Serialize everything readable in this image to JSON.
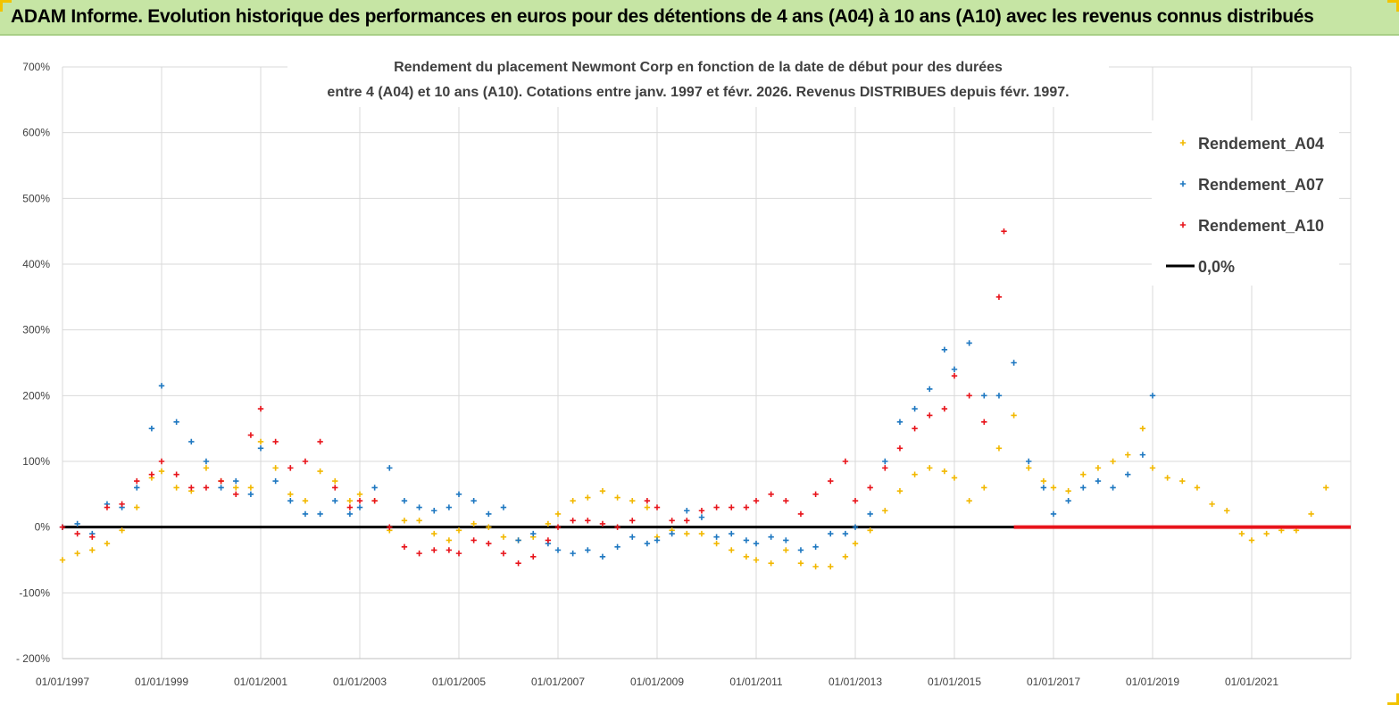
{
  "banner": {
    "title": "ADAM Informe. Evolution historique des performances en euros pour des détentions de 4 ans (A04) à 10 ans (A10) avec les revenus connus distribués"
  },
  "chart_data": {
    "type": "scatter",
    "title_line1": "Rendement du placement Newmont Corp en fonction de la date de début pour des durées",
    "title_line2": "entre 4 (A04) et 10 ans (A10).  Cotations entre janv. 1997 et févr. 2026. Revenus DISTRIBUES depuis févr. 1997.",
    "x_range": [
      1997.0,
      2023.0
    ],
    "x_ticks": [
      "01/01/1997",
      "01/01/1999",
      "01/01/2001",
      "01/01/2003",
      "01/01/2005",
      "01/01/2007",
      "01/01/2009",
      "01/01/2011",
      "01/01/2013",
      "01/01/2015",
      "01/01/2017",
      "01/01/2019",
      "01/01/2021"
    ],
    "x_tick_years": [
      1997,
      1999,
      2001,
      2003,
      2005,
      2007,
      2009,
      2011,
      2013,
      2015,
      2017,
      2019,
      2021
    ],
    "ylim": [
      -200,
      700
    ],
    "y_ticks": [
      "- 200%",
      "-100%",
      "0%",
      "100%",
      "200%",
      "300%",
      "400%",
      "500%",
      "600%",
      "700%"
    ],
    "y_tick_values": [
      -200,
      -100,
      0,
      100,
      200,
      300,
      400,
      500,
      600,
      700
    ],
    "grid": true,
    "legend_position": "right",
    "series": [
      {
        "name": "Rendement_A04",
        "color": "#f2b800",
        "marker": "plus",
        "x": [
          1997.0,
          1997.3,
          1997.6,
          1997.9,
          1998.2,
          1998.5,
          1998.8,
          1999.0,
          1999.3,
          1999.6,
          1999.9,
          2000.2,
          2000.5,
          2000.8,
          2001.0,
          2001.3,
          2001.6,
          2001.9,
          2002.2,
          2002.5,
          2002.8,
          2003.0,
          2003.3,
          2003.6,
          2003.9,
          2004.2,
          2004.5,
          2004.8,
          2005.0,
          2005.3,
          2005.6,
          2005.9,
          2006.2,
          2006.5,
          2006.8,
          2007.0,
          2007.3,
          2007.6,
          2007.9,
          2008.2,
          2008.5,
          2008.8,
          2009.0,
          2009.3,
          2009.6,
          2009.9,
          2010.2,
          2010.5,
          2010.8,
          2011.0,
          2011.3,
          2011.6,
          2011.9,
          2012.2,
          2012.5,
          2012.8,
          2013.0,
          2013.3,
          2013.6,
          2013.9,
          2014.2,
          2014.5,
          2014.8,
          2015.0,
          2015.3,
          2015.6,
          2015.9,
          2016.2,
          2016.5,
          2016.8,
          2017.0,
          2017.3,
          2017.6,
          2017.9,
          2018.2,
          2018.5,
          2018.8,
          2019.0,
          2019.3,
          2019.6,
          2019.9,
          2020.2,
          2020.5,
          2020.8,
          2021.0,
          2021.3,
          2021.6,
          2021.9,
          2022.2,
          2022.5
        ],
        "y": [
          -50,
          -40,
          -35,
          -25,
          -5,
          30,
          75,
          85,
          60,
          55,
          90,
          70,
          60,
          60,
          130,
          90,
          50,
          40,
          85,
          70,
          40,
          50,
          40,
          -5,
          10,
          10,
          -10,
          -20,
          -5,
          5,
          0,
          -15,
          -20,
          -15,
          5,
          20,
          40,
          45,
          55,
          45,
          40,
          30,
          -15,
          -5,
          -10,
          -10,
          -25,
          -35,
          -45,
          -50,
          -55,
          -35,
          -55,
          -60,
          -60,
          -45,
          -25,
          -5,
          25,
          55,
          80,
          90,
          85,
          75,
          40,
          60,
          120,
          170,
          90,
          70,
          60,
          55,
          80,
          90,
          100,
          110,
          150,
          90,
          75,
          70,
          60,
          35,
          25,
          -10,
          -20,
          -10,
          -5,
          -5,
          20,
          60
        ]
      },
      {
        "name": "Rendement_A07",
        "color": "#1f78c1",
        "marker": "plus",
        "x": [
          1997.0,
          1997.3,
          1997.6,
          1997.9,
          1998.2,
          1998.5,
          1998.8,
          1999.0,
          1999.3,
          1999.6,
          1999.9,
          2000.2,
          2000.5,
          2000.8,
          2001.0,
          2001.3,
          2001.6,
          2001.9,
          2002.2,
          2002.5,
          2002.8,
          2003.0,
          2003.3,
          2003.6,
          2003.9,
          2004.2,
          2004.5,
          2004.8,
          2005.0,
          2005.3,
          2005.6,
          2005.9,
          2006.2,
          2006.5,
          2006.8,
          2007.0,
          2007.3,
          2007.6,
          2007.9,
          2008.2,
          2008.5,
          2008.8,
          2009.0,
          2009.3,
          2009.6,
          2009.9,
          2010.2,
          2010.5,
          2010.8,
          2011.0,
          2011.3,
          2011.6,
          2011.9,
          2012.2,
          2012.5,
          2012.8,
          2013.0,
          2013.3,
          2013.6,
          2013.9,
          2014.2,
          2014.5,
          2014.8,
          2015.0,
          2015.3,
          2015.6,
          2015.9,
          2016.2,
          2016.5,
          2016.8,
          2017.0,
          2017.3,
          2017.6,
          2017.9,
          2018.2,
          2018.5,
          2018.8,
          2019.0
        ],
        "y": [
          0,
          5,
          -10,
          35,
          30,
          60,
          150,
          215,
          160,
          130,
          100,
          60,
          70,
          50,
          120,
          70,
          40,
          20,
          20,
          40,
          20,
          30,
          60,
          90,
          40,
          30,
          25,
          30,
          50,
          40,
          20,
          30,
          -20,
          -10,
          -25,
          -35,
          -40,
          -35,
          -45,
          -30,
          -15,
          -25,
          -20,
          -10,
          25,
          15,
          -15,
          -10,
          -20,
          -25,
          -15,
          -20,
          -35,
          -30,
          -10,
          -10,
          0,
          20,
          100,
          160,
          180,
          210,
          270,
          240,
          280,
          200,
          200,
          250,
          100,
          60,
          20,
          40,
          60,
          70,
          60,
          80,
          110,
          200
        ]
      },
      {
        "name": "Rendement_A10",
        "color": "#e8141b",
        "marker": "plus",
        "x": [
          1997.0,
          1997.3,
          1997.6,
          1997.9,
          1998.2,
          1998.5,
          1998.8,
          1999.0,
          1999.3,
          1999.6,
          1999.9,
          2000.2,
          2000.5,
          2000.8,
          2001.0,
          2001.3,
          2001.6,
          2001.9,
          2002.2,
          2002.5,
          2002.8,
          2003.0,
          2003.3,
          2003.6,
          2003.9,
          2004.2,
          2004.5,
          2004.8,
          2005.0,
          2005.3,
          2005.6,
          2005.9,
          2006.2,
          2006.5,
          2006.8,
          2007.0,
          2007.3,
          2007.6,
          2007.9,
          2008.2,
          2008.5,
          2008.8,
          2009.0,
          2009.3,
          2009.6,
          2009.9,
          2010.2,
          2010.5,
          2010.8,
          2011.0,
          2011.3,
          2011.6,
          2011.9,
          2012.2,
          2012.5,
          2012.8,
          2013.0,
          2013.3,
          2013.6,
          2013.9,
          2014.2,
          2014.5,
          2014.8,
          2015.0,
          2015.3,
          2015.6,
          2015.9,
          2016.0
        ],
        "y": [
          0,
          -10,
          -15,
          30,
          35,
          70,
          80,
          100,
          80,
          60,
          60,
          70,
          50,
          140,
          180,
          130,
          90,
          100,
          130,
          60,
          30,
          40,
          40,
          0,
          -30,
          -40,
          -35,
          -35,
          -40,
          -20,
          -25,
          -40,
          -55,
          -45,
          -20,
          0,
          10,
          10,
          5,
          0,
          10,
          40,
          30,
          10,
          10,
          25,
          30,
          30,
          30,
          40,
          50,
          40,
          20,
          50,
          70,
          100,
          40,
          60,
          90,
          120,
          150,
          170,
          180,
          230,
          200,
          160,
          350,
          450
        ]
      },
      {
        "name": "0,0%",
        "color": "#000000",
        "marker": "line",
        "x": [
          1997.0,
          2023.0
        ],
        "y": [
          0,
          0
        ]
      }
    ],
    "zero_stub": {
      "series": "Rendement_A10",
      "x": [
        2016.2,
        2023.0
      ],
      "y": 0
    }
  }
}
